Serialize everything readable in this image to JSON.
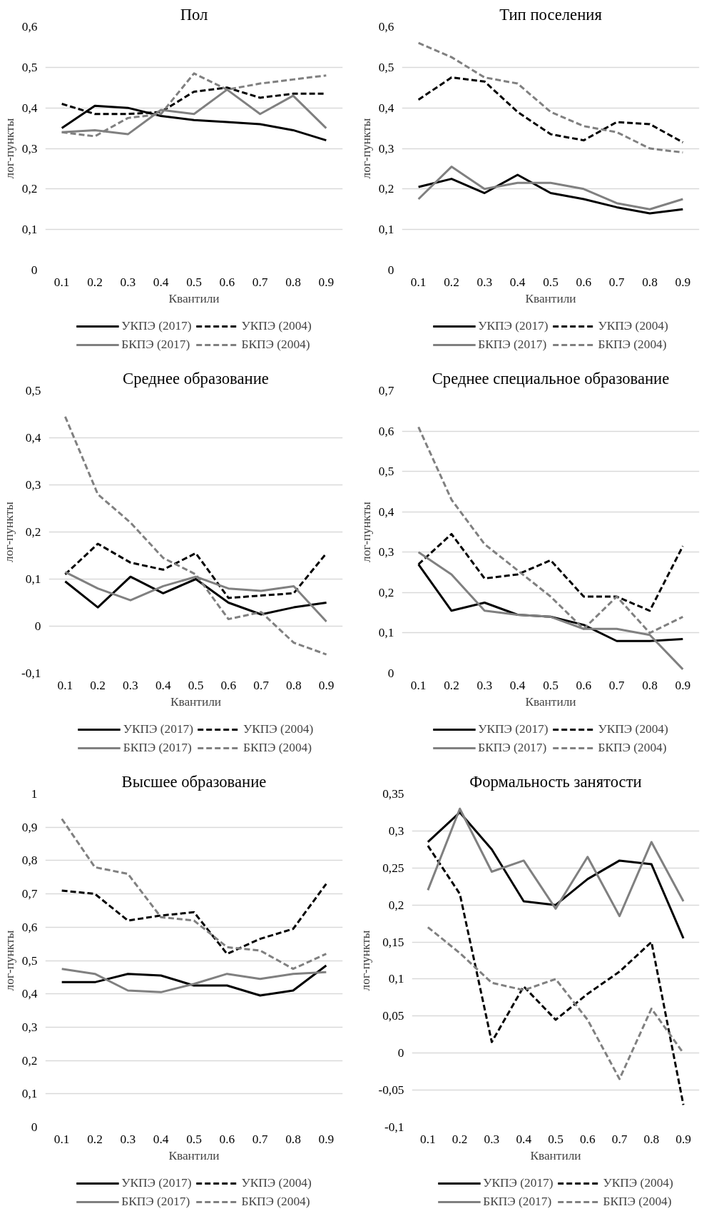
{
  "chart_data": [
    {
      "type": "line",
      "title": "Пол",
      "xlabel": "Квантили",
      "ylabel": "лог-пункты",
      "categories": [
        "0.1",
        "0.2",
        "0.3",
        "0.4",
        "0.5",
        "0.6",
        "0.7",
        "0.8",
        "0.9"
      ],
      "ylim": [
        0,
        0.6
      ],
      "yticks": [
        {
          "value": 0,
          "label": "0"
        },
        {
          "value": 0.1,
          "label": "0,1"
        },
        {
          "value": 0.2,
          "label": "0,2"
        },
        {
          "value": 0.3,
          "label": "0,3"
        },
        {
          "value": 0.4,
          "label": "0,4"
        },
        {
          "value": 0.5,
          "label": "0,5"
        },
        {
          "value": 0.6,
          "label": "0,6"
        }
      ],
      "grid": "y",
      "legend": "bottom",
      "series": [
        {
          "name": "УКПЭ (2017)",
          "color": "#000000",
          "line_style": "solid",
          "values": [
            0.35,
            0.405,
            0.4,
            0.38,
            0.37,
            0.365,
            0.36,
            0.345,
            0.32
          ]
        },
        {
          "name": "УКПЭ (2004)",
          "color": "#000000",
          "line_style": "dashed",
          "values": [
            0.41,
            0.385,
            0.385,
            0.39,
            0.44,
            0.45,
            0.425,
            0.435,
            0.435
          ]
        },
        {
          "name": "БКПЭ (2017)",
          "color": "#808080",
          "line_style": "solid",
          "values": [
            0.34,
            0.345,
            0.335,
            0.395,
            0.385,
            0.445,
            0.385,
            0.43,
            0.35
          ]
        },
        {
          "name": "БКПЭ (2004)",
          "color": "#808080",
          "line_style": "dashed",
          "values": [
            0.34,
            0.33,
            0.375,
            0.385,
            0.485,
            0.445,
            0.46,
            0.47,
            0.48
          ]
        }
      ]
    },
    {
      "type": "line",
      "title": "Тип поселения",
      "xlabel": "Квантили",
      "ylabel": "лог-пункты",
      "categories": [
        "0.1",
        "0.2",
        "0.3",
        "0.4",
        "0.5",
        "0.6",
        "0.7",
        "0.8",
        "0.9"
      ],
      "ylim": [
        0,
        0.6
      ],
      "yticks": [
        {
          "value": 0,
          "label": "0"
        },
        {
          "value": 0.1,
          "label": "0,1"
        },
        {
          "value": 0.2,
          "label": "0,2"
        },
        {
          "value": 0.3,
          "label": "0,3"
        },
        {
          "value": 0.4,
          "label": "0,4"
        },
        {
          "value": 0.5,
          "label": "0,5"
        },
        {
          "value": 0.6,
          "label": "0,6"
        }
      ],
      "grid": "y",
      "legend": "bottom",
      "series": [
        {
          "name": "УКПЭ (2017)",
          "color": "#000000",
          "line_style": "solid",
          "values": [
            0.205,
            0.225,
            0.19,
            0.235,
            0.19,
            0.175,
            0.155,
            0.14,
            0.15
          ]
        },
        {
          "name": "УКПЭ (2004)",
          "color": "#000000",
          "line_style": "dashed",
          "values": [
            0.42,
            0.475,
            0.465,
            0.39,
            0.335,
            0.32,
            0.365,
            0.36,
            0.315
          ]
        },
        {
          "name": "БКПЭ (2017)",
          "color": "#808080",
          "line_style": "solid",
          "values": [
            0.175,
            0.255,
            0.2,
            0.215,
            0.215,
            0.2,
            0.165,
            0.15,
            0.175
          ]
        },
        {
          "name": "БКПЭ (2004)",
          "color": "#808080",
          "line_style": "dashed",
          "values": [
            0.56,
            0.525,
            0.475,
            0.46,
            0.39,
            0.355,
            0.34,
            0.3,
            0.29
          ]
        }
      ]
    },
    {
      "type": "line",
      "title": "Среднее образование",
      "xlabel": "Квантили",
      "ylabel": "лог-пункты",
      "categories": [
        "0.1",
        "0.2",
        "0.3",
        "0.4",
        "0.5",
        "0.6",
        "0.7",
        "0.8",
        "0.9"
      ],
      "ylim": [
        -0.1,
        0.5
      ],
      "yticks": [
        {
          "value": -0.1,
          "label": "-0,1"
        },
        {
          "value": 0,
          "label": "0"
        },
        {
          "value": 0.1,
          "label": "0,1"
        },
        {
          "value": 0.2,
          "label": "0,2"
        },
        {
          "value": 0.3,
          "label": "0,3"
        },
        {
          "value": 0.4,
          "label": "0,4"
        },
        {
          "value": 0.5,
          "label": "0,5"
        }
      ],
      "grid": "y",
      "legend": "bottom",
      "series": [
        {
          "name": "УКПЭ (2017)",
          "color": "#000000",
          "line_style": "solid",
          "values": [
            0.095,
            0.04,
            0.105,
            0.07,
            0.1,
            0.05,
            0.025,
            0.04,
            0.05
          ]
        },
        {
          "name": "УКПЭ (2004)",
          "color": "#000000",
          "line_style": "dashed",
          "values": [
            0.11,
            0.175,
            0.135,
            0.12,
            0.155,
            0.06,
            0.065,
            0.07,
            0.155
          ]
        },
        {
          "name": "БКПЭ (2017)",
          "color": "#808080",
          "line_style": "solid",
          "values": [
            0.115,
            0.08,
            0.055,
            0.085,
            0.105,
            0.08,
            0.075,
            0.085,
            0.01
          ]
        },
        {
          "name": "БКПЭ (2004)",
          "color": "#808080",
          "line_style": "dashed",
          "values": [
            0.445,
            0.28,
            0.22,
            0.145,
            0.11,
            0.015,
            0.03,
            -0.035,
            -0.06
          ]
        }
      ]
    },
    {
      "type": "line",
      "title": "Среднее специальное образование",
      "xlabel": "Квантили",
      "ylabel": "лог-пункты",
      "categories": [
        "0.1",
        "0.2",
        "0.3",
        "0.4",
        "0.5",
        "0.6",
        "0.7",
        "0.8",
        "0.9"
      ],
      "ylim": [
        0,
        0.7
      ],
      "yticks": [
        {
          "value": 0,
          "label": "0"
        },
        {
          "value": 0.1,
          "label": "0,1"
        },
        {
          "value": 0.2,
          "label": "0,2"
        },
        {
          "value": 0.3,
          "label": "0,3"
        },
        {
          "value": 0.4,
          "label": "0,4"
        },
        {
          "value": 0.5,
          "label": "0,5"
        },
        {
          "value": 0.6,
          "label": "0,6"
        },
        {
          "value": 0.7,
          "label": "0,7"
        }
      ],
      "grid": "y",
      "legend": "bottom",
      "series": [
        {
          "name": "УКПЭ (2017)",
          "color": "#000000",
          "line_style": "solid",
          "values": [
            0.27,
            0.155,
            0.175,
            0.145,
            0.14,
            0.12,
            0.08,
            0.08,
            0.085
          ]
        },
        {
          "name": "УКПЭ (2004)",
          "color": "#000000",
          "line_style": "dashed",
          "values": [
            0.27,
            0.345,
            0.235,
            0.245,
            0.28,
            0.19,
            0.19,
            0.155,
            0.315
          ]
        },
        {
          "name": "БКПЭ (2017)",
          "color": "#808080",
          "line_style": "solid",
          "values": [
            0.3,
            0.245,
            0.155,
            0.145,
            0.14,
            0.11,
            0.11,
            0.095,
            0.01
          ]
        },
        {
          "name": "БКПЭ (2004)",
          "color": "#808080",
          "line_style": "dashed",
          "values": [
            0.61,
            0.43,
            0.32,
            0.255,
            0.19,
            0.11,
            0.19,
            0.1,
            0.14
          ]
        }
      ]
    },
    {
      "type": "line",
      "title": "Высшее образование",
      "xlabel": "Квантили",
      "ylabel": "лог-пункты",
      "categories": [
        "0.1",
        "0.2",
        "0.3",
        "0.4",
        "0.5",
        "0.6",
        "0.7",
        "0.8",
        "0.9"
      ],
      "ylim": [
        0,
        1
      ],
      "yticks": [
        {
          "value": 0,
          "label": "0"
        },
        {
          "value": 0.1,
          "label": "0,1"
        },
        {
          "value": 0.2,
          "label": "0,2"
        },
        {
          "value": 0.3,
          "label": "0,3"
        },
        {
          "value": 0.4,
          "label": "0,4"
        },
        {
          "value": 0.5,
          "label": "0,5"
        },
        {
          "value": 0.6,
          "label": "0,6"
        },
        {
          "value": 0.7,
          "label": "0,7"
        },
        {
          "value": 0.8,
          "label": "0,8"
        },
        {
          "value": 0.9,
          "label": "0,9"
        },
        {
          "value": 1,
          "label": "1"
        }
      ],
      "grid": "y",
      "legend": "bottom",
      "series": [
        {
          "name": "УКПЭ (2017)",
          "color": "#000000",
          "line_style": "solid",
          "values": [
            0.435,
            0.435,
            0.46,
            0.455,
            0.425,
            0.425,
            0.395,
            0.41,
            0.485
          ]
        },
        {
          "name": "УКПЭ (2004)",
          "color": "#000000",
          "line_style": "dashed",
          "values": [
            0.71,
            0.7,
            0.62,
            0.635,
            0.645,
            0.52,
            0.565,
            0.595,
            0.73
          ]
        },
        {
          "name": "БКПЭ (2017)",
          "color": "#808080",
          "line_style": "solid",
          "values": [
            0.475,
            0.46,
            0.41,
            0.405,
            0.43,
            0.46,
            0.445,
            0.46,
            0.465
          ]
        },
        {
          "name": "БКПЭ (2004)",
          "color": "#808080",
          "line_style": "dashed",
          "values": [
            0.925,
            0.78,
            0.76,
            0.63,
            0.62,
            0.54,
            0.53,
            0.475,
            0.52
          ]
        }
      ]
    },
    {
      "type": "line",
      "title": "Формальность занятости",
      "xlabel": "Квантили",
      "ylabel": "лог-пункты",
      "categories": [
        "0.1",
        "0.2",
        "0.3",
        "0.4",
        "0.5",
        "0.6",
        "0.7",
        "0.8",
        "0.9"
      ],
      "ylim": [
        -0.1,
        0.35
      ],
      "yticks": [
        {
          "value": -0.1,
          "label": "-0,1"
        },
        {
          "value": -0.05,
          "label": "-0,05"
        },
        {
          "value": 0,
          "label": "0"
        },
        {
          "value": 0.05,
          "label": "0,05"
        },
        {
          "value": 0.1,
          "label": "0,1"
        },
        {
          "value": 0.15,
          "label": "0,15"
        },
        {
          "value": 0.2,
          "label": "0,2"
        },
        {
          "value": 0.25,
          "label": "0,25"
        },
        {
          "value": 0.3,
          "label": "0,3"
        },
        {
          "value": 0.35,
          "label": "0,35"
        }
      ],
      "grid": "y",
      "legend": "bottom",
      "series": [
        {
          "name": "УКПЭ (2017)",
          "color": "#000000",
          "line_style": "solid",
          "values": [
            0.285,
            0.325,
            0.275,
            0.205,
            0.2,
            0.235,
            0.26,
            0.255,
            0.155
          ]
        },
        {
          "name": "УКПЭ (2004)",
          "color": "#000000",
          "line_style": "dashed",
          "values": [
            0.28,
            0.215,
            0.015,
            0.09,
            0.045,
            0.08,
            0.11,
            0.15,
            -0.07
          ]
        },
        {
          "name": "БКПЭ (2017)",
          "color": "#808080",
          "line_style": "solid",
          "values": [
            0.22,
            0.33,
            0.245,
            0.26,
            0.195,
            0.265,
            0.185,
            0.285,
            0.205
          ]
        },
        {
          "name": "БКПЭ (2004)",
          "color": "#808080",
          "line_style": "dashed",
          "values": [
            0.17,
            0.135,
            0.095,
            0.085,
            0.1,
            0.045,
            -0.035,
            0.06,
            0
          ]
        }
      ]
    }
  ]
}
